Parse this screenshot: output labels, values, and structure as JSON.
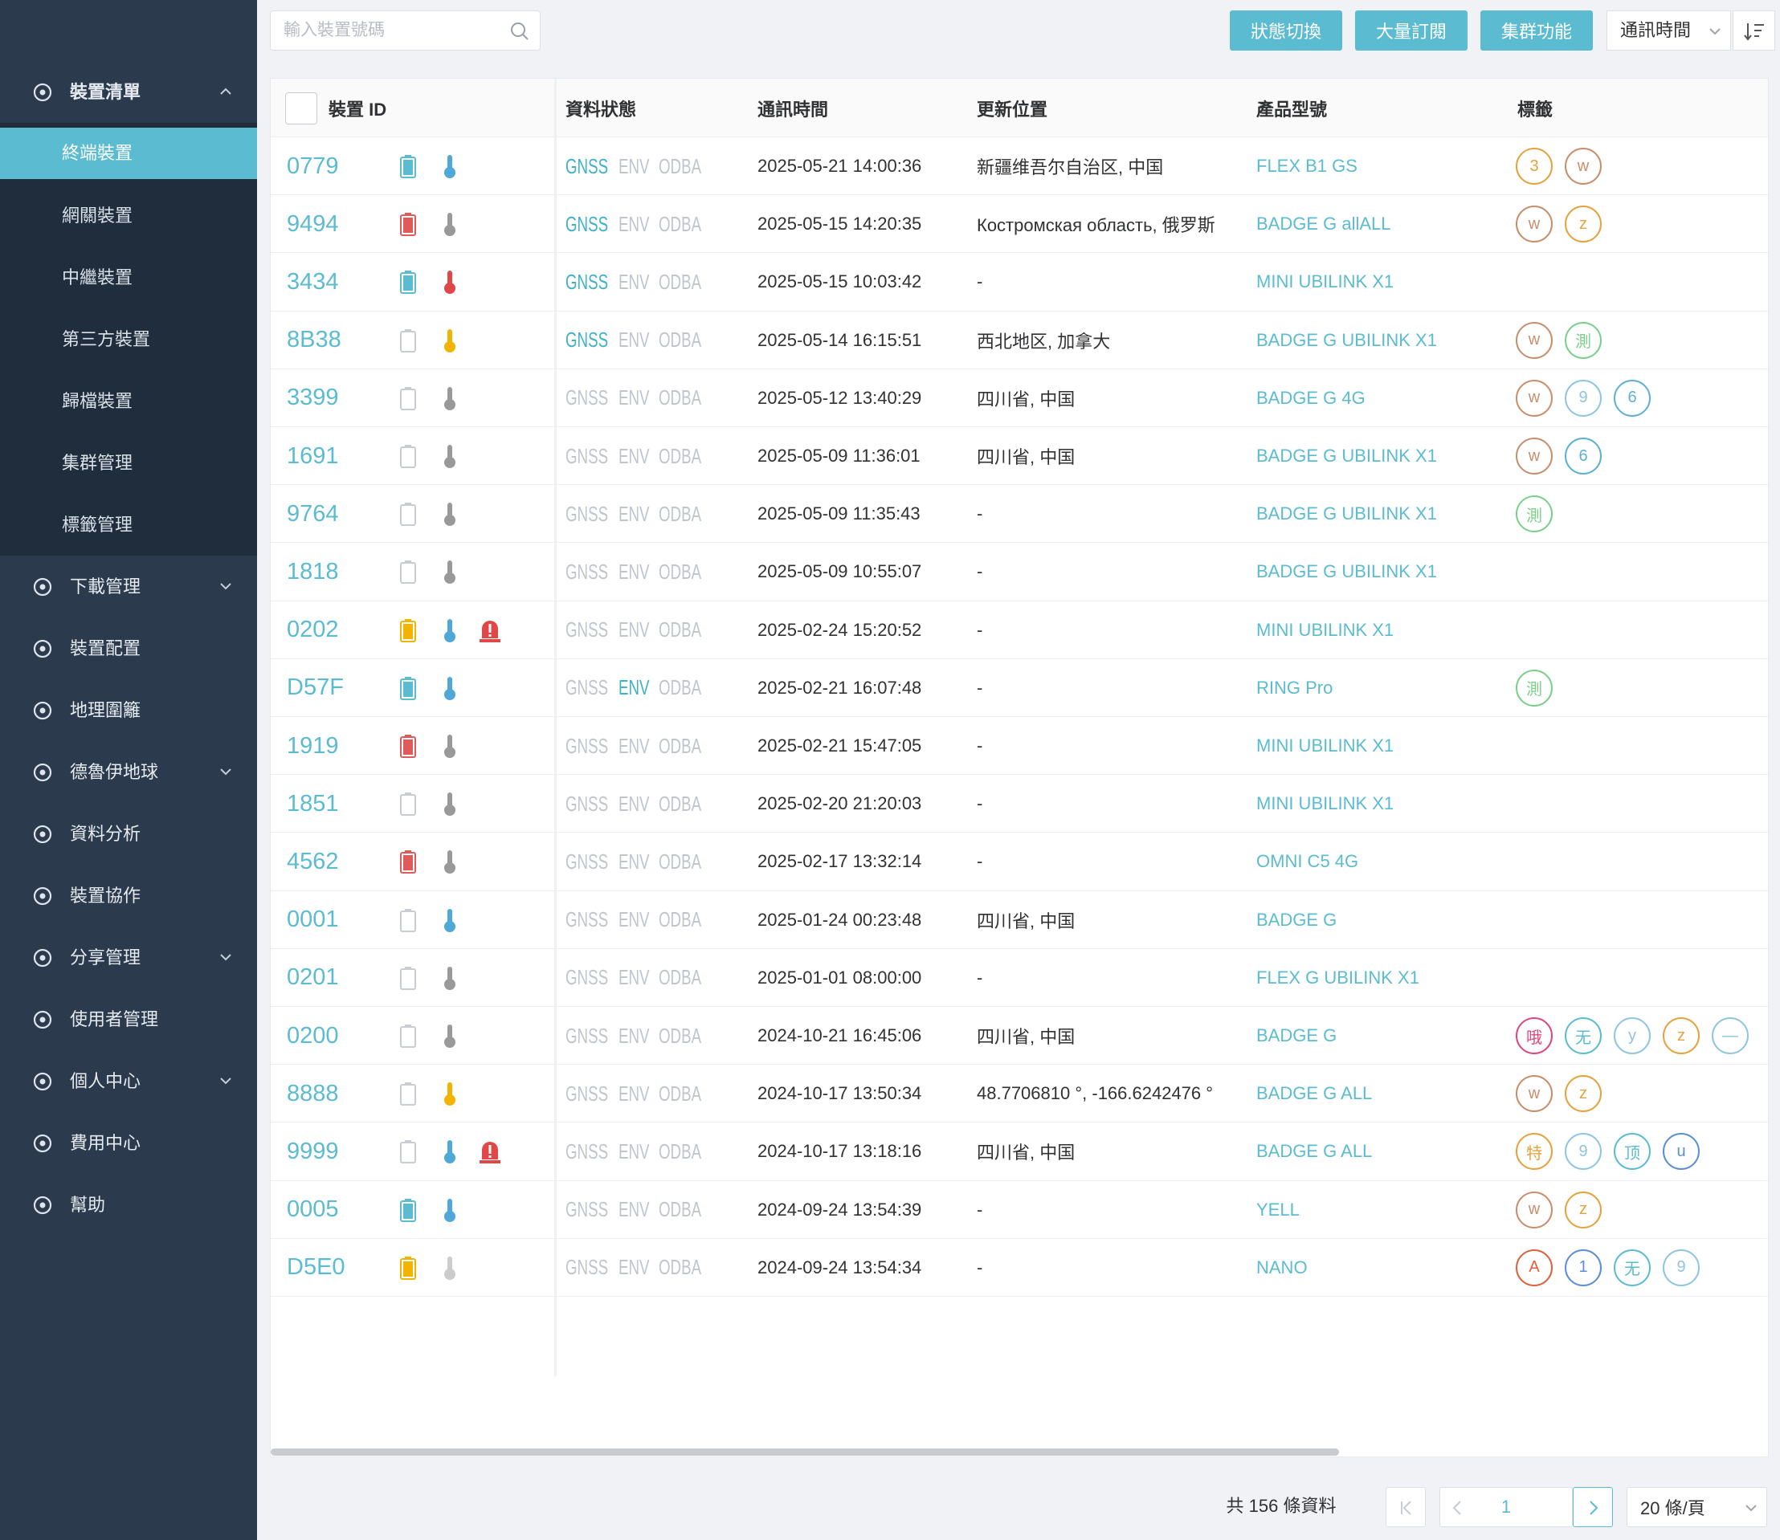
{
  "sidebar": {
    "menu": [
      {
        "label": "裝置清單",
        "expandable": true,
        "expanded": true,
        "active_child": 0,
        "children": [
          "終端裝置",
          "網關裝置",
          "中繼裝置",
          "第三方裝置",
          "歸檔裝置",
          "集群管理",
          "標籤管理"
        ]
      },
      {
        "label": "下載管理",
        "expandable": true
      },
      {
        "label": "裝置配置",
        "expandable": false
      },
      {
        "label": "地理圍籬",
        "expandable": false
      },
      {
        "label": "德魯伊地球",
        "expandable": true
      },
      {
        "label": "資料分析",
        "expandable": false
      },
      {
        "label": "裝置協作",
        "expandable": false
      },
      {
        "label": "分享管理",
        "expandable": true
      },
      {
        "label": "使用者管理",
        "expandable": false
      },
      {
        "label": "個人中心",
        "expandable": true
      },
      {
        "label": "費用中心",
        "expandable": false
      },
      {
        "label": "幫助",
        "expandable": false
      }
    ]
  },
  "toolbar": {
    "search_placeholder": "輸入裝置號碼",
    "buttons": [
      "狀態切換",
      "大量訂閱",
      "集群功能"
    ],
    "sort_field": "通訊時間"
  },
  "table": {
    "headers": [
      "裝置 ID",
      "資料狀態",
      "通訊時間",
      "更新位置",
      "產品型號",
      "標籤"
    ],
    "status_labels": [
      "GNSS",
      "ENV",
      "ODBA"
    ],
    "rows": [
      {
        "id": "0779",
        "battery": "#5bbcd1",
        "temp": "#4fa8d8",
        "alert": false,
        "status_active": [
          true,
          false,
          false
        ],
        "time": "2025-05-21 14:00:36",
        "location": "新疆维吾尔自治区, 中国",
        "model": "FLEX B1 GS",
        "tags": [
          {
            "text": "3",
            "color": "#e6a23c"
          },
          {
            "text": "w",
            "color": "#c98d6b"
          }
        ]
      },
      {
        "id": "9494",
        "battery": "#e05a5a",
        "temp": "#999999",
        "alert": false,
        "status_active": [
          true,
          false,
          false
        ],
        "time": "2025-05-15 14:20:35",
        "location": "Костромская область, 俄罗斯",
        "model": "BADGE G allALL",
        "tags": [
          {
            "text": "w",
            "color": "#c98d6b"
          },
          {
            "text": "z",
            "color": "#e6a23c"
          }
        ]
      },
      {
        "id": "3434",
        "battery": "#5bbcd1",
        "temp": "#e04848",
        "alert": false,
        "status_active": [
          true,
          false,
          false
        ],
        "time": "2025-05-15 10:03:42",
        "location": "-",
        "model": "MINI UBILINK X1",
        "tags": []
      },
      {
        "id": "8B38",
        "battery": null,
        "temp": "#f2b400",
        "alert": false,
        "status_active": [
          true,
          false,
          false
        ],
        "time": "2025-05-14 16:15:51",
        "location": "西北地区, 加拿大",
        "model": "BADGE G UBILINK X1",
        "tags": [
          {
            "text": "w",
            "color": "#c98d6b"
          },
          {
            "text": "測",
            "color": "#7ccf8a"
          }
        ]
      },
      {
        "id": "3399",
        "battery": null,
        "temp": "#999999",
        "alert": false,
        "status_active": [
          false,
          false,
          false
        ],
        "time": "2025-05-12 13:40:29",
        "location": "四川省, 中国",
        "model": "BADGE G 4G",
        "tags": [
          {
            "text": "w",
            "color": "#c98d6b"
          },
          {
            "text": "9",
            "color": "#8ec5e0"
          },
          {
            "text": "6",
            "color": "#5bb0d5"
          }
        ]
      },
      {
        "id": "1691",
        "battery": null,
        "temp": "#999999",
        "alert": false,
        "status_active": [
          false,
          false,
          false
        ],
        "time": "2025-05-09 11:36:01",
        "location": "四川省, 中国",
        "model": "BADGE G UBILINK X1",
        "tags": [
          {
            "text": "w",
            "color": "#c98d6b"
          },
          {
            "text": "6",
            "color": "#5bb0d5"
          }
        ]
      },
      {
        "id": "9764",
        "battery": null,
        "temp": "#999999",
        "alert": false,
        "status_active": [
          false,
          false,
          false
        ],
        "time": "2025-05-09 11:35:43",
        "location": "-",
        "model": "BADGE G UBILINK X1",
        "tags": [
          {
            "text": "測",
            "color": "#7ccf8a"
          }
        ]
      },
      {
        "id": "1818",
        "battery": null,
        "temp": "#999999",
        "alert": false,
        "status_active": [
          false,
          false,
          false
        ],
        "time": "2025-05-09 10:55:07",
        "location": "-",
        "model": "BADGE G UBILINK X1",
        "tags": []
      },
      {
        "id": "0202",
        "battery": "#f2b400",
        "temp": "#4fa8d8",
        "alert": true,
        "status_active": [
          false,
          false,
          false
        ],
        "time": "2025-02-24 15:20:52",
        "location": "-",
        "model": "MINI UBILINK X1",
        "tags": []
      },
      {
        "id": "D57F",
        "battery": "#5bbcd1",
        "temp": "#4fa8d8",
        "alert": false,
        "status_active": [
          false,
          true,
          false
        ],
        "time": "2025-02-21 16:07:48",
        "location": "-",
        "model": "RING Pro",
        "tags": [
          {
            "text": "測",
            "color": "#7ccf8a"
          }
        ]
      },
      {
        "id": "1919",
        "battery": "#e05a5a",
        "temp": "#999999",
        "alert": false,
        "status_active": [
          false,
          false,
          false
        ],
        "time": "2025-02-21 15:47:05",
        "location": "-",
        "model": "MINI UBILINK X1",
        "tags": []
      },
      {
        "id": "1851",
        "battery": null,
        "temp": "#999999",
        "alert": false,
        "status_active": [
          false,
          false,
          false
        ],
        "time": "2025-02-20 21:20:03",
        "location": "-",
        "model": "MINI UBILINK X1",
        "tags": []
      },
      {
        "id": "4562",
        "battery": "#e05a5a",
        "temp": "#999999",
        "alert": false,
        "status_active": [
          false,
          false,
          false
        ],
        "time": "2025-02-17 13:32:14",
        "location": "-",
        "model": "OMNI C5 4G",
        "tags": []
      },
      {
        "id": "0001",
        "battery": null,
        "temp": "#4fa8d8",
        "alert": false,
        "status_active": [
          false,
          false,
          false
        ],
        "time": "2025-01-24 00:23:48",
        "location": "四川省, 中国",
        "model": "BADGE G",
        "tags": []
      },
      {
        "id": "0201",
        "battery": null,
        "temp": "#999999",
        "alert": false,
        "status_active": [
          false,
          false,
          false
        ],
        "time": "2025-01-01 08:00:00",
        "location": "-",
        "model": "FLEX G UBILINK X1",
        "tags": []
      },
      {
        "id": "0200",
        "battery": null,
        "temp": "#999999",
        "alert": false,
        "status_active": [
          false,
          false,
          false
        ],
        "time": "2024-10-21 16:45:06",
        "location": "四川省, 中国",
        "model": "BADGE G",
        "tags": [
          {
            "text": "哦",
            "color": "#e0457b"
          },
          {
            "text": "无",
            "color": "#5bbcd1"
          },
          {
            "text": "y",
            "color": "#8ec5e0"
          },
          {
            "text": "z",
            "color": "#e6a23c"
          },
          {
            "text": "—",
            "color": "#8ec5e0"
          }
        ]
      },
      {
        "id": "8888",
        "battery": null,
        "temp": "#f2b400",
        "alert": false,
        "status_active": [
          false,
          false,
          false
        ],
        "time": "2024-10-17 13:50:34",
        "location": "48.7706810 °, -166.6242476 °",
        "model": "BADGE G ALL",
        "tags": [
          {
            "text": "w",
            "color": "#c98d6b"
          },
          {
            "text": "z",
            "color": "#e6a23c"
          }
        ]
      },
      {
        "id": "9999",
        "battery": null,
        "temp": "#4fa8d8",
        "alert": true,
        "status_active": [
          false,
          false,
          false
        ],
        "time": "2024-10-17 13:18:16",
        "location": "四川省, 中国",
        "model": "BADGE G ALL",
        "tags": [
          {
            "text": "特",
            "color": "#e6a23c"
          },
          {
            "text": "9",
            "color": "#8ec5e0"
          },
          {
            "text": "顶",
            "color": "#5bbcd1"
          },
          {
            "text": "u",
            "color": "#5b8fd5"
          }
        ]
      },
      {
        "id": "0005",
        "battery": "#5bbcd1",
        "temp": "#4fa8d8",
        "alert": false,
        "status_active": [
          false,
          false,
          false
        ],
        "time": "2024-09-24 13:54:39",
        "location": "-",
        "model": "YELL",
        "tags": [
          {
            "text": "w",
            "color": "#c98d6b"
          },
          {
            "text": "z",
            "color": "#e6a23c"
          }
        ]
      },
      {
        "id": "D5E0",
        "battery": "#f2b400",
        "temp": "#cccccc",
        "alert": false,
        "status_active": [
          false,
          false,
          false
        ],
        "time": "2024-09-24 13:54:34",
        "location": "-",
        "model": "NANO",
        "tags": [
          {
            "text": "A",
            "color": "#e0603c"
          },
          {
            "text": "1",
            "color": "#5b8fd5"
          },
          {
            "text": "无",
            "color": "#5bbcd1"
          },
          {
            "text": "9",
            "color": "#8ec5e0"
          }
        ]
      }
    ]
  },
  "pagination": {
    "total": "共 156 條資料",
    "page": "1",
    "page_size": "20 條/頁"
  }
}
